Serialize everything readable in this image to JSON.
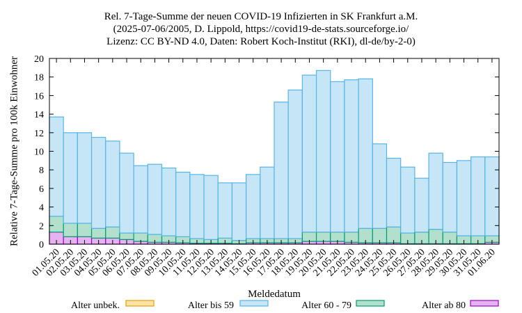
{
  "title_lines": [
    "Rel. 7-Tage-Summe der neuen COVID-19 Infizierten in SK Frankfurt a.M.",
    "(2025-07-06/2005, D. Lippold, https://covid19-de-stats.sourceforge.io/",
    "Lizenz: CC BY-ND 4.0, Daten: Robert Koch-Institut (RKI), dl-de/by-2-0)"
  ],
  "chart_data": {
    "type": "bar",
    "stacked": true,
    "title": "Rel. 7-Tage-Summe der neuen COVID-19 Infizierten in SK Frankfurt a.M.",
    "xlabel": "Meldedatum",
    "ylabel": "Relative 7-Tage-Summe pro 100k Einwohner",
    "ylim": [
      0,
      20
    ],
    "yticks": [
      0,
      2,
      4,
      6,
      8,
      10,
      12,
      14,
      16,
      18,
      20
    ],
    "grid": false,
    "legend_position": "bottom",
    "categories": [
      "01.05.20",
      "02.05.20",
      "03.05.20",
      "04.05.20",
      "05.05.20",
      "06.05.20",
      "07.05.20",
      "08.05.20",
      "09.05.20",
      "10.05.20",
      "11.05.20",
      "12.05.20",
      "13.05.20",
      "14.05.20",
      "15.05.20",
      "16.05.20",
      "17.05.20",
      "18.05.20",
      "19.05.20",
      "20.05.20",
      "21.05.20",
      "22.05.20",
      "23.05.20",
      "24.05.20",
      "25.05.20",
      "26.05.20",
      "27.05.20",
      "28.05.20",
      "29.05.20",
      "30.05.20",
      "31.05.20",
      "01.06.20"
    ],
    "series": [
      {
        "name": "Alter ab 80",
        "fill": "#e6b3f0",
        "stroke": "#9400d3",
        "values": [
          1.3,
          0.8,
          0.8,
          0.65,
          0.65,
          0.5,
          0.3,
          0.2,
          0.2,
          0.15,
          0.1,
          0.1,
          0.1,
          0.05,
          0.15,
          0.15,
          0.15,
          0.15,
          0.3,
          0.3,
          0.3,
          0.2,
          0.15,
          0.15,
          0.15,
          0.05,
          0.05,
          0.05,
          0.05,
          0.05,
          0.05,
          0.2
        ]
      },
      {
        "name": "Alter 60 - 79",
        "fill": "#b3e0cc",
        "stroke": "#009e73",
        "values": [
          1.7,
          1.45,
          1.45,
          1.05,
          1.2,
          0.7,
          0.9,
          0.85,
          0.7,
          0.65,
          0.5,
          0.4,
          0.55,
          0.35,
          0.45,
          0.45,
          0.45,
          0.45,
          1.0,
          1.0,
          1.0,
          1.1,
          1.55,
          1.55,
          1.7,
          1.15,
          1.25,
          1.55,
          1.25,
          0.85,
          0.85,
          0.7
        ]
      },
      {
        "name": "Alter bis 59",
        "fill": "#c6e6f7",
        "stroke": "#56b4e9",
        "values": [
          10.7,
          9.75,
          9.75,
          9.8,
          9.25,
          8.6,
          7.25,
          7.55,
          7.3,
          6.95,
          6.9,
          6.9,
          5.95,
          6.2,
          6.9,
          7.7,
          14.7,
          16.0,
          16.9,
          17.4,
          16.2,
          16.4,
          16.1,
          9.1,
          7.4,
          7.1,
          5.8,
          8.2,
          7.5,
          8.1,
          8.5,
          8.5
        ]
      },
      {
        "name": "Alter unbek.",
        "fill": "#fde3a7",
        "stroke": "#e69f00",
        "values": [
          0,
          0,
          0,
          0,
          0,
          0,
          0,
          0,
          0,
          0,
          0,
          0,
          0,
          0,
          0,
          0,
          0,
          0,
          0,
          0,
          0,
          0,
          0,
          0,
          0,
          0,
          0,
          0,
          0,
          0,
          0,
          0
        ]
      }
    ]
  },
  "legend_order": [
    "Alter unbek.",
    "Alter bis 59",
    "Alter 60 - 79",
    "Alter ab 80"
  ]
}
